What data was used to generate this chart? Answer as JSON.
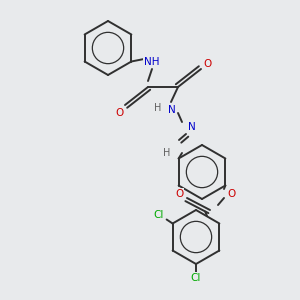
{
  "bg_color": "#e8eaec",
  "atom_colors": {
    "C": "#303030",
    "N": "#0000cc",
    "O": "#cc0000",
    "H": "#606060",
    "Cl": "#00aa00"
  },
  "bond_color": "#303030",
  "lw": 1.4,
  "fs": 7.0
}
